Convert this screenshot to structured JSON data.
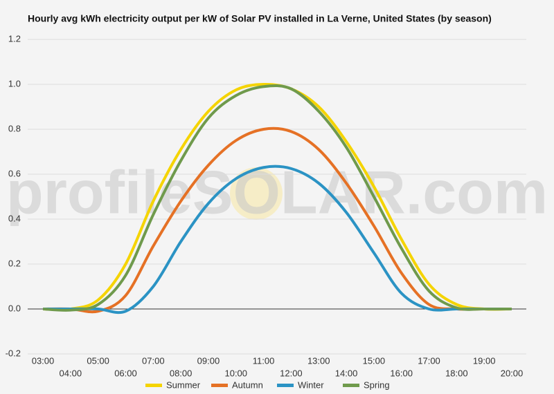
{
  "chart_data": {
    "type": "line",
    "title": "Hourly avg kWh electricity output per kW of Solar PV installed in La Verne, United States (by season)",
    "watermark": "profileSOLAR.com",
    "categories": [
      "03:00",
      "04:00",
      "05:00",
      "06:00",
      "07:00",
      "08:00",
      "09:00",
      "10:00",
      "11:00",
      "12:00",
      "13:00",
      "14:00",
      "15:00",
      "16:00",
      "17:00",
      "18:00",
      "19:00",
      "20:00"
    ],
    "series": [
      {
        "name": "Summer",
        "color": "#f5d400",
        "values": [
          0,
          0,
          0.04,
          0.2,
          0.48,
          0.71,
          0.88,
          0.975,
          1.0,
          0.98,
          0.9,
          0.745,
          0.545,
          0.31,
          0.11,
          0.02,
          0,
          0
        ]
      },
      {
        "name": "Autumn",
        "color": "#e57125",
        "values": [
          0,
          0,
          -0.01,
          0.06,
          0.28,
          0.48,
          0.64,
          0.75,
          0.8,
          0.79,
          0.71,
          0.56,
          0.37,
          0.16,
          0.02,
          0,
          0,
          0
        ]
      },
      {
        "name": "Winter",
        "color": "#2b93c4",
        "values": [
          0,
          0,
          0,
          -0.01,
          0.1,
          0.3,
          0.47,
          0.58,
          0.63,
          0.625,
          0.56,
          0.43,
          0.25,
          0.07,
          0,
          0,
          0,
          0
        ]
      },
      {
        "name": "Spring",
        "color": "#6f9a4c",
        "values": [
          0,
          -0.005,
          0.02,
          0.15,
          0.42,
          0.66,
          0.85,
          0.95,
          0.99,
          0.98,
          0.88,
          0.72,
          0.5,
          0.27,
          0.08,
          0.005,
          0,
          0
        ]
      }
    ],
    "ylim": [
      -0.2,
      1.2
    ],
    "yticks": [
      -0.2,
      {
        "value": 0,
        "label": "0.0"
      },
      0.2,
      0.4,
      0.6,
      0.8,
      {
        "value": 1,
        "label": "1.0"
      },
      1.2
    ],
    "grid": true
  }
}
